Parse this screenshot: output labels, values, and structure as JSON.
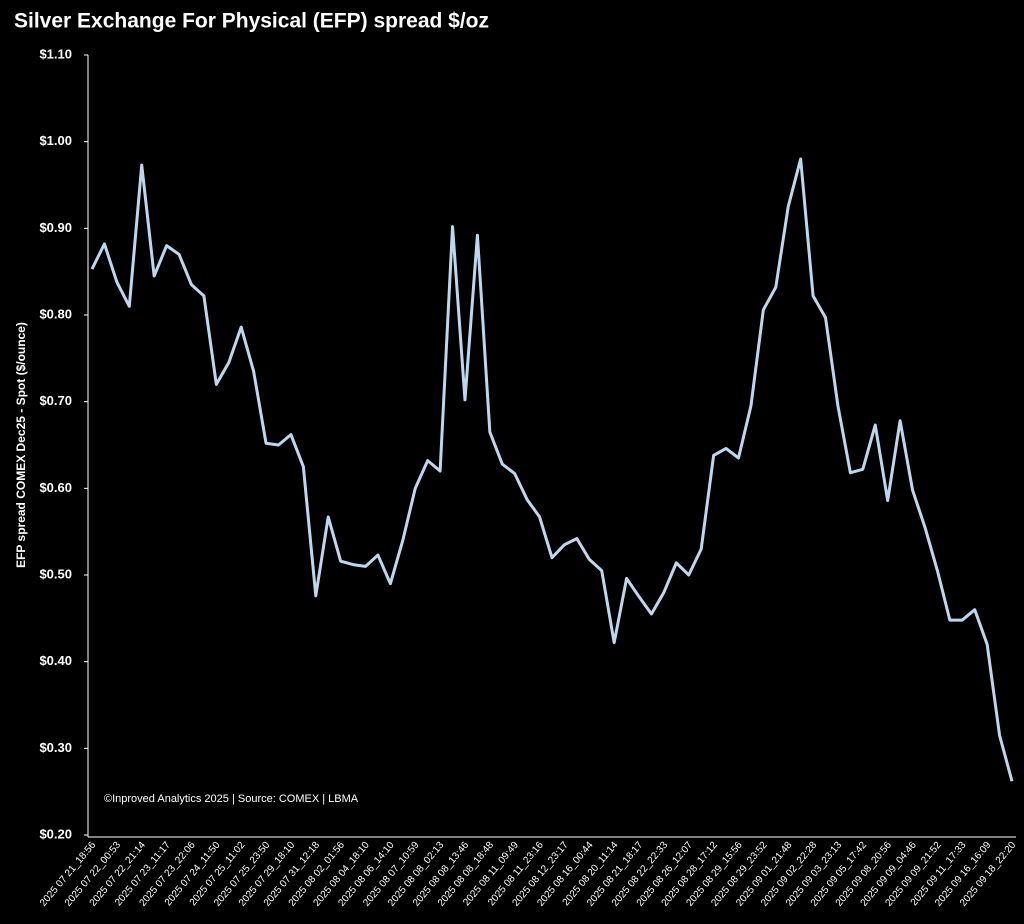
{
  "chart_data": {
    "type": "line",
    "title": "Silver Exchange For Physical (EFP) spread $/oz",
    "y_label": "EFP spread COMEX Dec25 - Spot ($/ounce)",
    "annotation": "©Inproved Analytics 2025 | Source: COMEX | LBMA",
    "categories": [
      "2025 07 21_18:56",
      null,
      "2025 07 22_00:53",
      null,
      "2025 07 22_21:14",
      null,
      "2025 07 23_11:17",
      null,
      "2025 07 23_22:06",
      null,
      "2025 07 24_11:50",
      null,
      "2025 07 25_11:02",
      null,
      "2025 07 25_23:50",
      null,
      "2025 07 29_18:10",
      null,
      "2025 07 31_12:18",
      null,
      "2025 08 02_01:56",
      null,
      "2025 08 04_18:10",
      null,
      "2025 08 06_14:10",
      null,
      "2025 08 07_10:59",
      null,
      "2025 08 08_02:13",
      null,
      "2025 08 08_13:46",
      null,
      "2025 08 08_18:48",
      null,
      "2025 08 11_09:49",
      null,
      "2025 08 11_23:16",
      null,
      "2025 08 12_23:17",
      null,
      "2025 08 16_00:44",
      null,
      "2025 08 20_11:14",
      null,
      "2025 08 21_18:17",
      null,
      "2025 08 22_22:33",
      null,
      "2025 08 26_12:07",
      null,
      "2025 08 28_17:12",
      null,
      "2025 08 29_15:56",
      null,
      "2025 08 29_23:52",
      null,
      "2025 09 01_21:48",
      null,
      "2025 09 02_22:28",
      null,
      "2025 09 03_23:13",
      null,
      "2025 09 05_17:42",
      null,
      "2025 09 08_20:56",
      null,
      "2025 09 09_04:46",
      null,
      "2025 09 09_21:52",
      null,
      "2025 09 11_17:33",
      null,
      "2025 09 16_16:09",
      null,
      "2025 09 18_22:20"
    ],
    "series": [
      {
        "name": "EFP spread",
        "color": "#bdd7ee",
        "values": [
          0.853,
          0.882,
          0.838,
          0.81,
          0.973,
          0.845,
          0.88,
          0.87,
          0.835,
          0.822,
          0.72,
          0.745,
          0.786,
          0.735,
          0.652,
          0.65,
          0.662,
          0.625,
          0.476,
          0.567,
          0.516,
          0.512,
          0.51,
          0.523,
          0.49,
          0.54,
          0.6,
          0.632,
          0.62,
          0.902,
          0.702,
          0.892,
          0.665,
          0.628,
          0.617,
          0.587,
          0.567,
          0.52,
          0.535,
          0.542,
          0.518,
          0.505,
          0.422,
          0.496,
          0.475,
          0.455,
          0.48,
          0.514,
          0.5,
          0.53,
          0.638,
          0.646,
          0.635,
          0.695,
          0.806,
          0.832,
          0.925,
          0.98,
          0.822,
          0.797,
          0.695,
          0.618,
          0.622,
          0.673,
          0.586,
          0.678,
          0.598,
          0.555,
          0.505,
          0.448,
          0.448,
          0.46,
          0.42,
          0.315,
          0.262
        ]
      }
    ],
    "ylim": [
      0.2,
      1.1
    ],
    "yticks": [
      {
        "value": 0.2,
        "label": "$0.20"
      },
      {
        "value": 0.3,
        "label": "$0.30"
      },
      {
        "value": 0.4,
        "label": "$0.40"
      },
      {
        "value": 0.5,
        "label": "$0.50"
      },
      {
        "value": 0.6,
        "label": "$0.60"
      },
      {
        "value": 0.7,
        "label": "$0.70"
      },
      {
        "value": 0.8,
        "label": "$0.80"
      },
      {
        "value": 0.9,
        "label": "$0.90"
      },
      {
        "value": 1.0,
        "label": "$1.00"
      },
      {
        "value": 1.1,
        "label": "$1.10"
      }
    ],
    "grid": false
  }
}
